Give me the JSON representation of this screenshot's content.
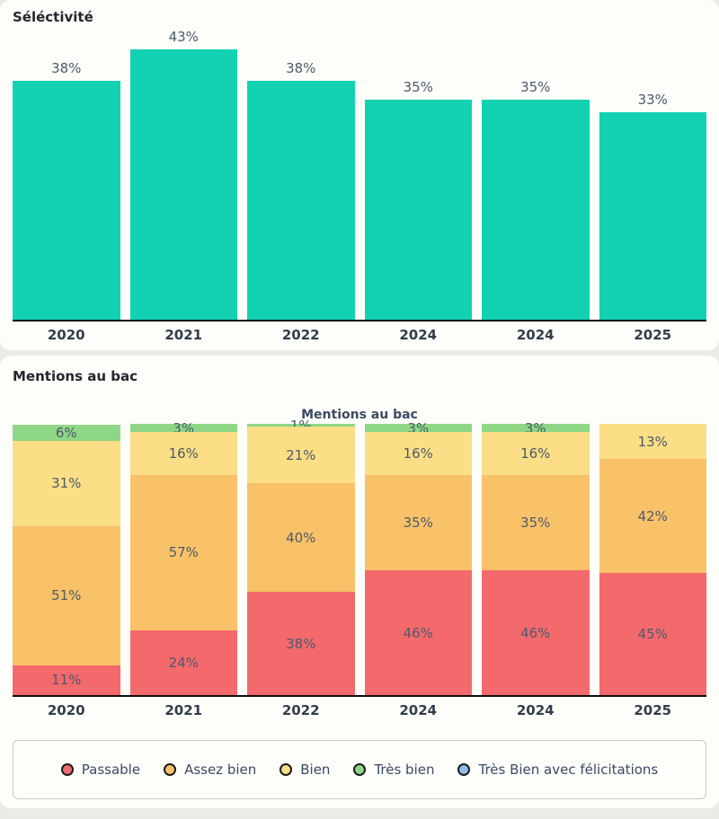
{
  "colors": {
    "teal": "#12d2b2",
    "passable_red": "#f4696c",
    "assez_bien_orange": "#f9c268",
    "bien_yellow": "#fbde85",
    "tres_bien_green": "#8ed786",
    "felicitations_blue": "#90bbef",
    "page_bg": "#ebeae6",
    "card_bg": "#fdfdfa",
    "label_text": "#4d5a6b",
    "axis_text": "#323d4c"
  },
  "selectivity_card": {
    "heading": "Séléctivité"
  },
  "mentions_card": {
    "heading": "Mentions au bac"
  },
  "chart_data": [
    {
      "type": "bar",
      "title": "Séléctivité",
      "categories": [
        "2020",
        "2021",
        "2022",
        "2024",
        "2024",
        "2025"
      ],
      "values": [
        38,
        43,
        38,
        35,
        35,
        33
      ],
      "value_labels": [
        "38%",
        "43%",
        "38%",
        "35%",
        "35%",
        "33%"
      ],
      "unit": "%",
      "bar_color": "#12d2b2",
      "xlabel": "",
      "ylabel": "",
      "ylim": [
        0,
        43
      ],
      "grid": false,
      "legend_position": "none"
    },
    {
      "type": "bar",
      "stacked": true,
      "title": "Mentions au bac",
      "categories": [
        "2020",
        "2021",
        "2022",
        "2024",
        "2024",
        "2025"
      ],
      "series": [
        {
          "name": "Passable",
          "color": "#f4696c",
          "values": [
            11,
            24,
            38,
            46,
            46,
            45
          ]
        },
        {
          "name": "Assez bien",
          "color": "#f9c268",
          "values": [
            51,
            57,
            40,
            35,
            35,
            42
          ]
        },
        {
          "name": "Bien",
          "color": "#fbde85",
          "values": [
            31,
            16,
            21,
            16,
            16,
            13
          ]
        },
        {
          "name": "Très bien",
          "color": "#8ed786",
          "values": [
            6,
            3,
            1,
            3,
            3,
            0
          ]
        },
        {
          "name": "Très Bien avec félicitations",
          "color": "#90bbef",
          "values": [
            0,
            0,
            0,
            0,
            0,
            0
          ]
        }
      ],
      "unit": "%",
      "xlabel": "",
      "ylabel": "",
      "ylim": [
        0,
        100
      ],
      "grid": false,
      "legend_position": "bottom"
    }
  ]
}
